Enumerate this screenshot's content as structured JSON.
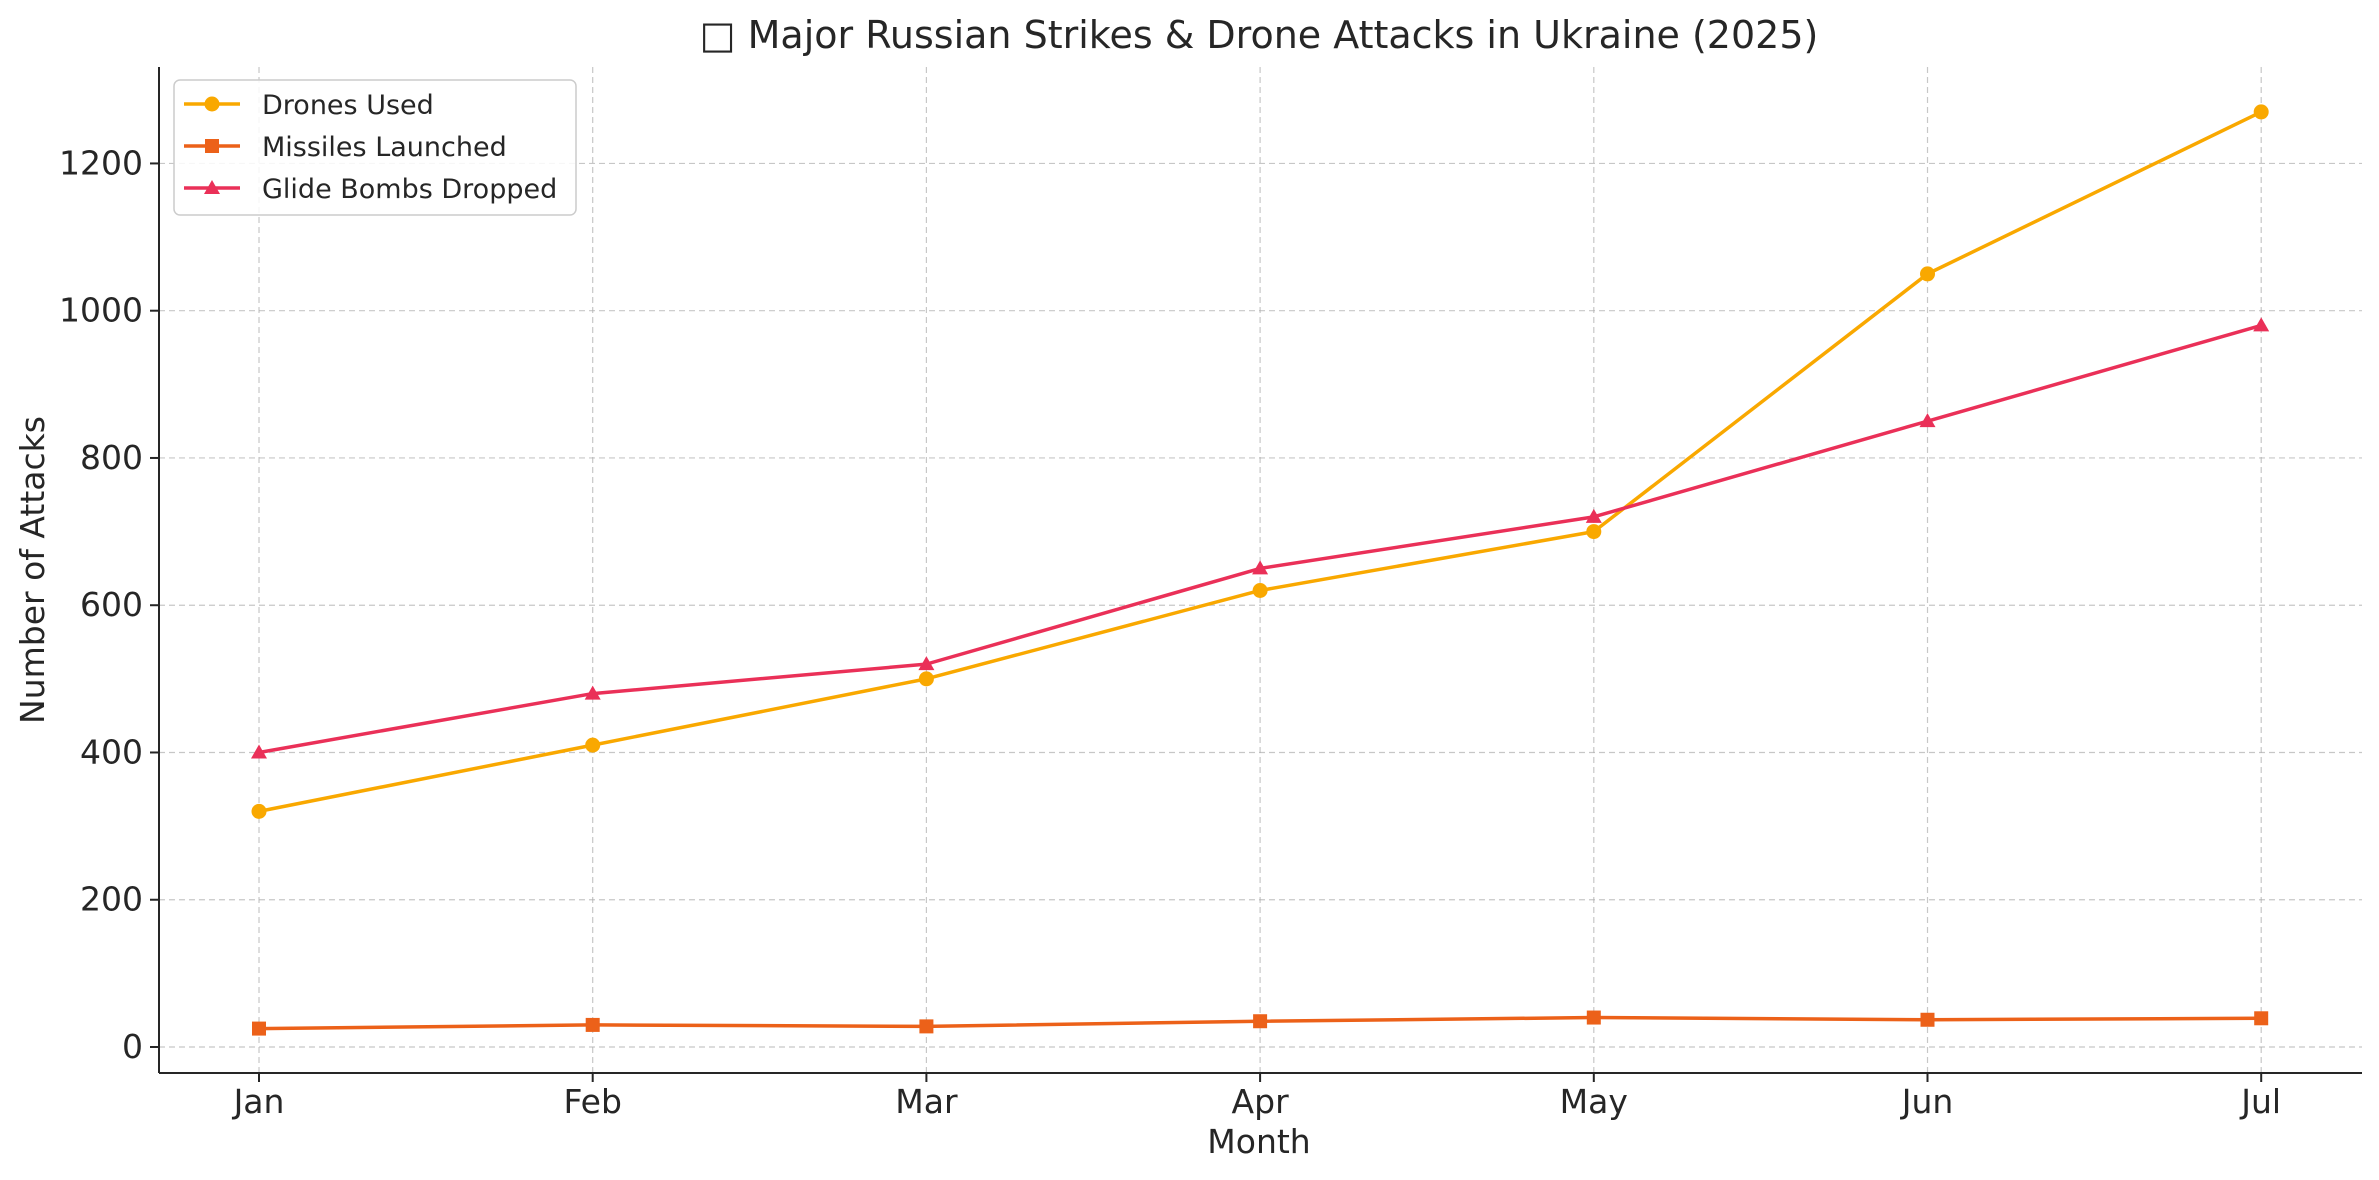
{
  "chart_data": {
    "type": "line",
    "title": "□ Major Russian Strikes & Drone Attacks in Ukraine (2025)",
    "xlabel": "Month",
    "ylabel": "Number of Attacks",
    "categories": [
      "Jan",
      "Feb",
      "Mar",
      "Apr",
      "May",
      "Jun",
      "Jul"
    ],
    "yticks": [
      0,
      200,
      400,
      600,
      800,
      1000,
      1200
    ],
    "ylim": [
      -35,
      1330
    ],
    "grid": true,
    "legend_position": "top-left",
    "series": [
      {
        "name": "Drones Used",
        "values": [
          320,
          410,
          500,
          620,
          700,
          1050,
          1270
        ],
        "color": "#f9a800",
        "marker": "circle"
      },
      {
        "name": "Missiles Launched",
        "values": [
          25,
          30,
          28,
          35,
          40,
          37,
          39
        ],
        "color": "#ec6119",
        "marker": "square"
      },
      {
        "name": "Glide Bombs Dropped",
        "values": [
          400,
          480,
          520,
          650,
          720,
          850,
          980
        ],
        "color": "#ea3058",
        "marker": "triangle"
      }
    ]
  }
}
